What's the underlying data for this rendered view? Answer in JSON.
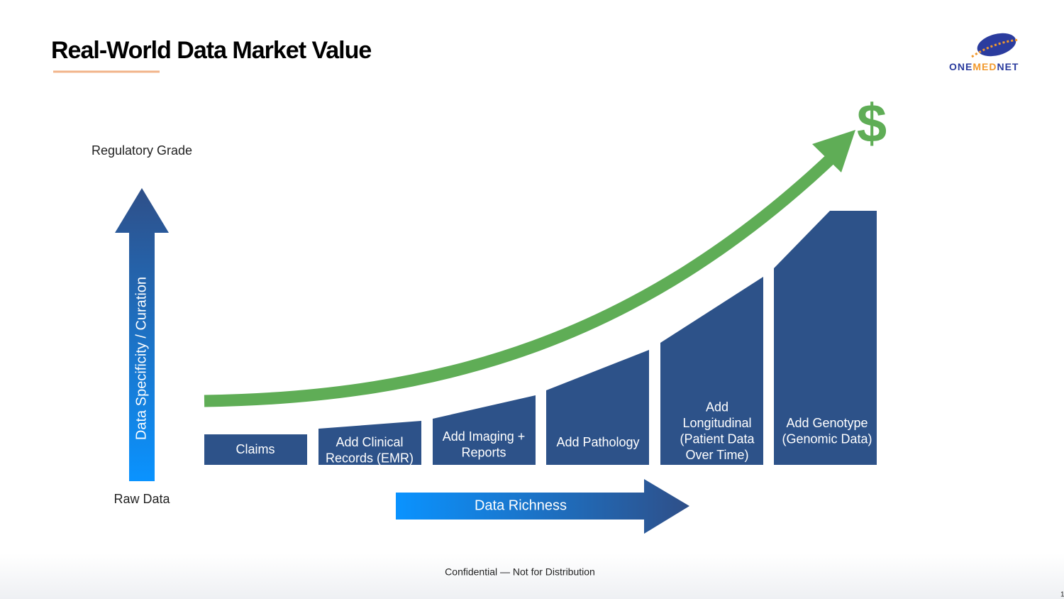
{
  "header": {
    "title": "Real-World Data Market Value",
    "logo_parts": [
      "ONE",
      "MED",
      "NET"
    ]
  },
  "vertical_axis": {
    "top_label": "Regulatory Grade",
    "bottom_label": "Raw Data",
    "arrow_label": "Data Specificity / Curation"
  },
  "horizontal_axis": {
    "arrow_label": "Data Richness"
  },
  "value_symbol": "$",
  "steps": [
    {
      "lines": [
        "Claims"
      ]
    },
    {
      "lines": [
        "Add Clinical",
        "Records (EMR)"
      ]
    },
    {
      "lines": [
        "Add Imaging +",
        "Reports"
      ]
    },
    {
      "lines": [
        "Add Pathology"
      ]
    },
    {
      "lines": [
        "Add",
        "Longitudinal",
        "(Patient Data",
        "Over Time)"
      ]
    },
    {
      "lines": [
        "Add Genotype",
        "(Genomic Data)"
      ]
    }
  ],
  "footer": {
    "text": "Confidential — Not for Distribution",
    "page_number": "1"
  }
}
